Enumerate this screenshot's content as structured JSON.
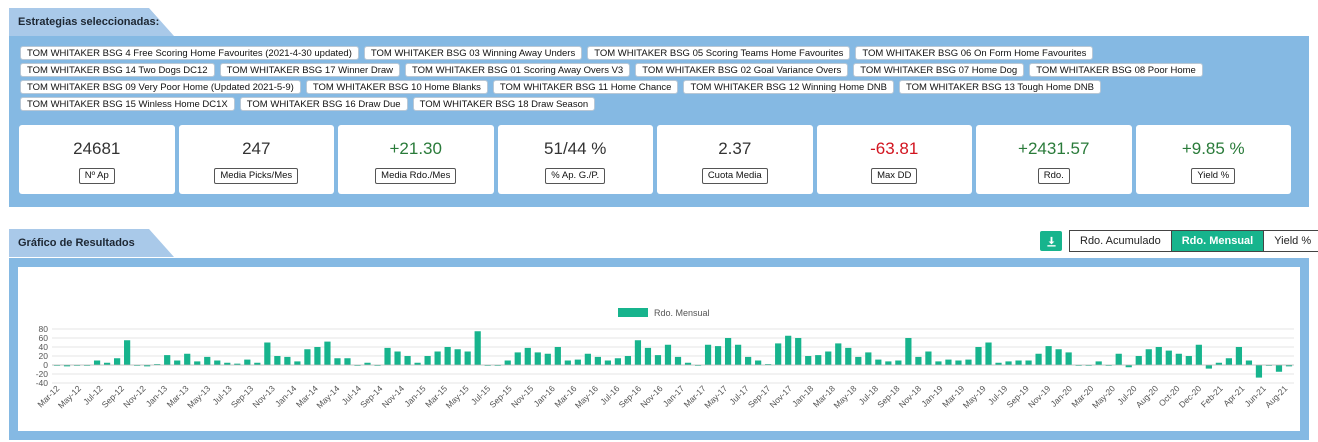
{
  "strategies": {
    "title": "Estrategias seleccionadas:",
    "tags": [
      "TOM WHITAKER BSG 4 Free Scoring Home Favourites (2021-4-30 updated)",
      "TOM WHITAKER BSG 03 Winning Away Unders",
      "TOM WHITAKER BSG 05 Scoring Teams Home Favourites",
      "TOM WHITAKER BSG 06 On Form Home Favourites",
      "TOM WHITAKER BSG 14 Two Dogs DC12",
      "TOM WHITAKER BSG 17 Winner Draw",
      "TOM WHITAKER BSG 01 Scoring Away Overs V3",
      "TOM WHITAKER BSG 02 Goal Variance Overs",
      "TOM WHITAKER BSG 07 Home Dog",
      "TOM WHITAKER BSG 08 Poor Home",
      "TOM WHITAKER BSG 09 Very Poor Home (Updated 2021-5-9)",
      "TOM WHITAKER BSG 10 Home Blanks",
      "TOM WHITAKER BSG 11 Home Chance",
      "TOM WHITAKER BSG 12 Winning Home DNB",
      "TOM WHITAKER BSG 13 Tough Home DNB",
      "TOM WHITAKER BSG 15 Winless Home DC1X",
      "TOM WHITAKER BSG 16 Draw Due",
      "TOM WHITAKER BSG 18 Draw Season"
    ]
  },
  "stats": [
    {
      "value": "24681",
      "label": "Nº Ap",
      "tone": "neutral"
    },
    {
      "value": "247",
      "label": "Media Picks/Mes",
      "tone": "neutral"
    },
    {
      "value": "+21.30",
      "label": "Media Rdo./Mes",
      "tone": "pos"
    },
    {
      "value": "51/44 %",
      "label": "% Ap. G./P.",
      "tone": "neutral"
    },
    {
      "value": "2.37",
      "label": "Cuota Media",
      "tone": "neutral"
    },
    {
      "value": "-63.81",
      "label": "Max DD",
      "tone": "neg"
    },
    {
      "value": "+2431.57",
      "label": "Rdo.",
      "tone": "pos"
    },
    {
      "value": "+9.85 %",
      "label": "Yield %",
      "tone": "pos"
    }
  ],
  "results": {
    "title": "Gráfico de Resultados",
    "download_icon": "download-icon",
    "modes": [
      "Rdo. Acumulado",
      "Rdo. Mensual",
      "Yield %"
    ],
    "active_mode": "Rdo. Mensual"
  },
  "chart_data": {
    "type": "bar",
    "legend": "Rdo. Mensual",
    "legend_position": "top-center",
    "color": "#17b48d",
    "grid": true,
    "y_ticks": [
      80,
      60,
      40,
      20,
      0,
      -20,
      -40
    ],
    "ylim": [
      -40,
      80
    ],
    "x_tick_labels": [
      "Mar-12",
      "May-12",
      "Jul-12",
      "Sep-12",
      "Nov-12",
      "Jan-13",
      "Mar-13",
      "May-13",
      "Jul-13",
      "Sep-13",
      "Nov-13",
      "Jan-14",
      "Mar-14",
      "May-14",
      "Jul-14",
      "Sep-14",
      "Nov-14",
      "Jan-15",
      "Mar-15",
      "May-15",
      "Jul-15",
      "Sep-15",
      "Nov-15",
      "Jan-16",
      "Mar-16",
      "May-16",
      "Jul-16",
      "Sep-16",
      "Nov-16",
      "Jan-17",
      "Mar-17",
      "May-17",
      "Jul-17",
      "Sep-17",
      "Nov-17",
      "Jan-18",
      "Mar-18",
      "May-18",
      "Jul-18",
      "Sep-18",
      "Nov-18",
      "Jan-19",
      "Mar-19",
      "May-19",
      "Jul-19",
      "Sep-19",
      "Nov-19",
      "Jan-20",
      "Mar-20",
      "May-20",
      "Jul-20",
      "Aug-20",
      "Oct-20",
      "Dec-20",
      "Feb-21",
      "Apr-21",
      "Jun-21",
      "Aug-21"
    ],
    "values": [
      0,
      -3,
      0,
      0,
      10,
      5,
      15,
      55,
      0,
      -3,
      2,
      22,
      10,
      25,
      8,
      18,
      10,
      5,
      3,
      12,
      5,
      50,
      20,
      18,
      8,
      35,
      40,
      52,
      15,
      15,
      0,
      5,
      0,
      38,
      30,
      20,
      5,
      20,
      30,
      40,
      35,
      30,
      75,
      0,
      0,
      10,
      28,
      38,
      28,
      25,
      40,
      10,
      12,
      25,
      18,
      10,
      15,
      20,
      55,
      38,
      22,
      45,
      18,
      5,
      0,
      45,
      42,
      60,
      45,
      18,
      10,
      2,
      48,
      65,
      60,
      20,
      22,
      30,
      48,
      38,
      18,
      28,
      12,
      8,
      10,
      60,
      18,
      30,
      8,
      12,
      10,
      12,
      40,
      50,
      5,
      8,
      10,
      10,
      25,
      42,
      35,
      28,
      0,
      0,
      8,
      0,
      25,
      -5,
      20,
      35,
      40,
      32,
      25,
      20,
      45,
      -8,
      5,
      15,
      40,
      10,
      -28,
      0,
      -15,
      -3
    ]
  }
}
